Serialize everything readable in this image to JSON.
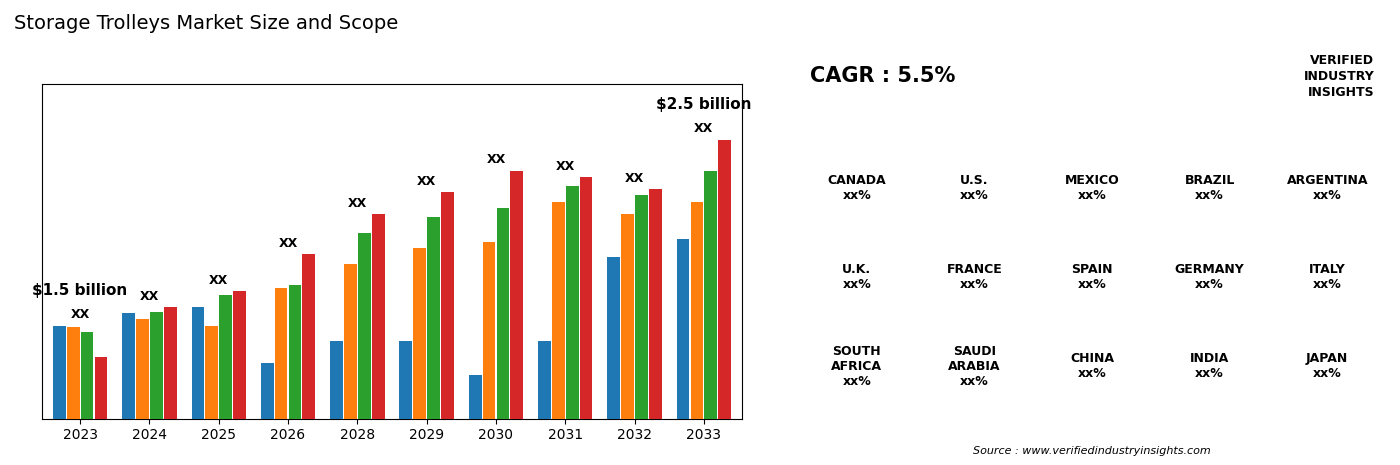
{
  "chart_data": {
    "type": "bar",
    "title": "Storage Trolleys Market Size and Scope",
    "categories": [
      "2023",
      "2024",
      "2025",
      "2026",
      "2028",
      "2029",
      "2030",
      "2031",
      "2032",
      "2033"
    ],
    "series": [
      {
        "values": [
          0.3,
          0.34,
          0.36,
          0.18,
          0.25,
          0.25,
          0.14,
          0.25,
          0.52,
          0.58
        ]
      },
      {
        "values": [
          0.295,
          0.32,
          0.3,
          0.42,
          0.5,
          0.55,
          0.57,
          0.7,
          0.66,
          0.7
        ]
      },
      {
        "values": [
          0.28,
          0.345,
          0.4,
          0.43,
          0.6,
          0.65,
          0.68,
          0.75,
          0.72,
          0.8
        ]
      },
      {
        "values": [
          0.2,
          0.36,
          0.41,
          0.53,
          0.66,
          0.73,
          0.8,
          0.78,
          0.74,
          0.9
        ]
      }
    ],
    "ylim": [
      0,
      1.08
    ],
    "yticks": [],
    "tick_labels": "x",
    "grid": false,
    "annotations": [
      "XX",
      "$1.5 billion",
      "$2.5 billion",
      "CAGR : 5.5%",
      "VERIFIED\nINDUSTRY\nINSIGHTS",
      "Source : www.verifiedindustryinsights.com",
      "CANADA\nxx%",
      "U.S.\nxx%",
      "MEXICO\nxx%",
      "BRAZIL\nxx%",
      "ARGENTINA\nxx%",
      "U.K.\nxx%",
      "FRANCE\nxx%",
      "SPAIN\nxx%",
      "GERMANY\nxx%",
      "ITALY\nxx%",
      "SOUTH\nAFRICA\nxx%",
      "SAUDI\nARABIA\nxx%",
      "CHINA\nxx%",
      "INDIA\nxx%",
      "JAPAN\nxx%"
    ]
  }
}
